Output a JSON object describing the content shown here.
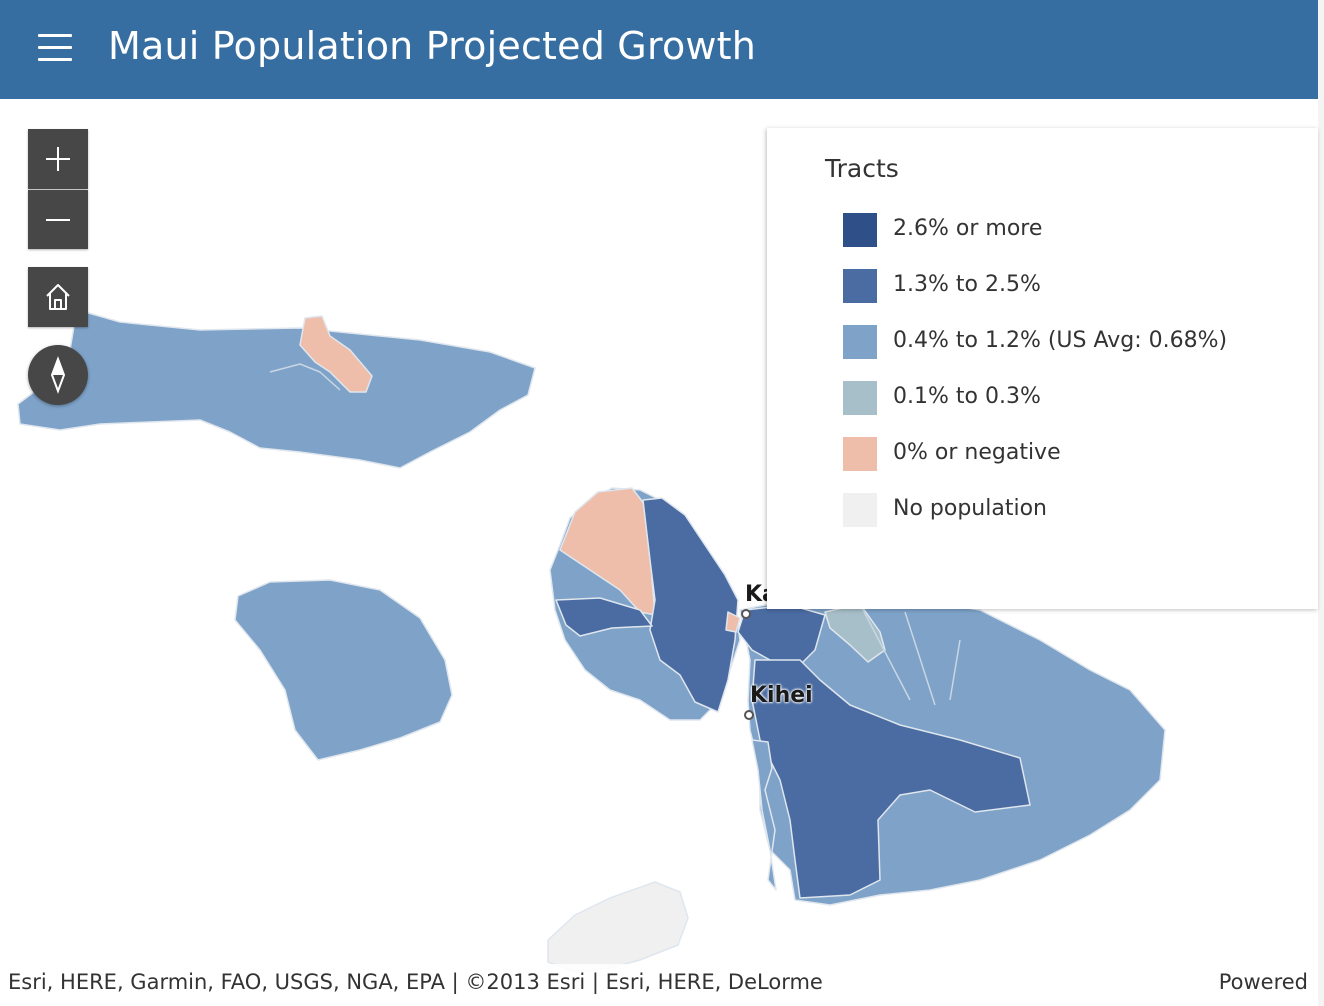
{
  "header": {
    "title": "Maui Population Projected Growth",
    "menu_icon": "hamburger-menu-icon"
  },
  "map_controls": {
    "zoom_in_icon": "plus-icon",
    "zoom_out_icon": "minus-icon",
    "home_icon": "home-icon",
    "compass_icon": "compass-icon"
  },
  "legend": {
    "title": "Tracts",
    "items": [
      {
        "label": "2.6% or more",
        "color": "#2f4f88"
      },
      {
        "label": "1.3% to 2.5%",
        "color": "#4a6ca2"
      },
      {
        "label": "0.4% to 1.2% (US Avg: 0.68%)",
        "color": "#7ea2c8"
      },
      {
        "label": "0.1% to 0.3%",
        "color": "#a7bfc9"
      },
      {
        "label": "0% or negative",
        "color": "#eebeaa"
      },
      {
        "label": "No population",
        "color": "#f0f0f0"
      }
    ]
  },
  "places": [
    {
      "label": "Ka"
    },
    {
      "label": "Kihei"
    }
  ],
  "attribution": {
    "text": "Esri, HERE, Garmin, FAO, USGS, NGA, EPA | ©2013 Esri | Esri, HERE, DeLorme",
    "powered": "Powered"
  }
}
